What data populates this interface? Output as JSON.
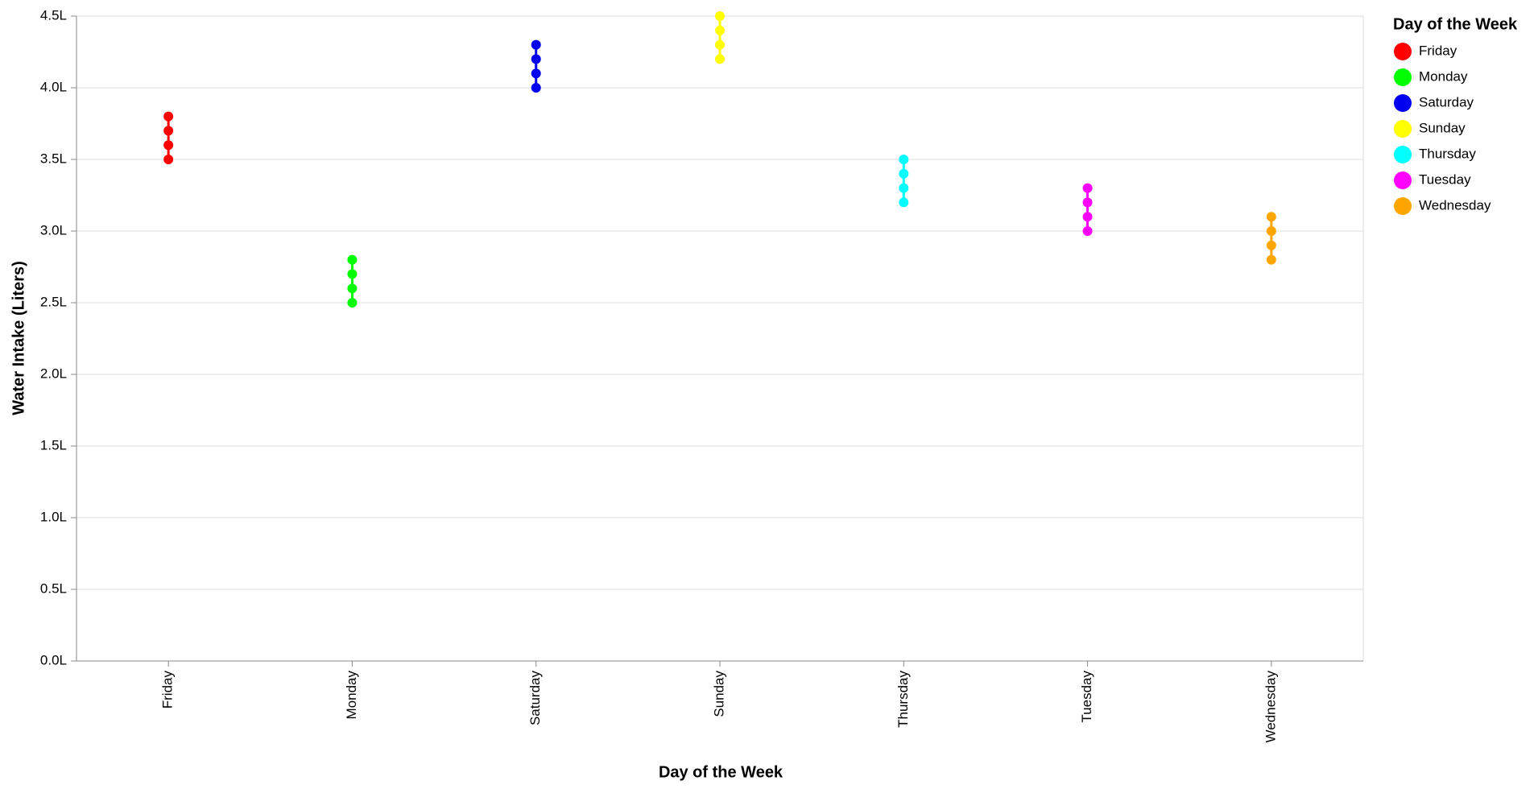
{
  "chart_data": {
    "type": "strip",
    "xlabel": "Day of the Week",
    "ylabel": "Water Intake (Liters)",
    "legend_title": "Day of the Week",
    "legend": "right",
    "grid": true,
    "categories": [
      "Friday",
      "Monday",
      "Saturday",
      "Sunday",
      "Thursday",
      "Tuesday",
      "Wednesday"
    ],
    "ylim": [
      0,
      4.5
    ],
    "yticks": [
      {
        "value": 0,
        "label": "0.0L"
      },
      {
        "value": 0.5,
        "label": "0.5L"
      },
      {
        "value": 1,
        "label": "1.0L"
      },
      {
        "value": 1.5,
        "label": "1.5L"
      },
      {
        "value": 2,
        "label": "2.0L"
      },
      {
        "value": 2.5,
        "label": "2.5L"
      },
      {
        "value": 3,
        "label": "3.0L"
      },
      {
        "value": 3.5,
        "label": "3.5L"
      },
      {
        "value": 4,
        "label": "4.0L"
      },
      {
        "value": 4.5,
        "label": "4.5L"
      }
    ],
    "series": [
      {
        "name": "Friday",
        "color": "#ff0000",
        "values": [
          3.5,
          3.6,
          3.7,
          3.8
        ]
      },
      {
        "name": "Monday",
        "color": "#00ff00",
        "values": [
          2.5,
          2.6,
          2.7,
          2.8
        ]
      },
      {
        "name": "Saturday",
        "color": "#0000ee",
        "values": [
          4.0,
          4.1,
          4.2,
          4.3
        ]
      },
      {
        "name": "Sunday",
        "color": "#ffff00",
        "values": [
          4.2,
          4.3,
          4.4,
          4.5
        ]
      },
      {
        "name": "Thursday",
        "color": "#00ffff",
        "values": [
          3.2,
          3.3,
          3.4,
          3.5
        ]
      },
      {
        "name": "Tuesday",
        "color": "#ff00ff",
        "values": [
          3.0,
          3.1,
          3.2,
          3.3
        ]
      },
      {
        "name": "Wednesday",
        "color": "#ffa500",
        "values": [
          2.8,
          2.9,
          3.0,
          3.1
        ]
      }
    ]
  }
}
